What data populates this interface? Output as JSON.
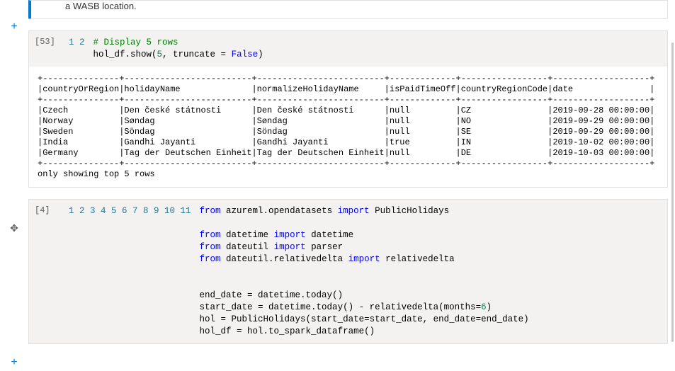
{
  "banner": {
    "text": "a WASB location."
  },
  "gutter": {
    "add_symbol": "+",
    "move_symbol": "✥"
  },
  "cell1": {
    "exec_count": "[53]",
    "line_numbers": [
      "1",
      "2"
    ],
    "code_tokens": [
      [
        {
          "t": "# Display 5 rows",
          "c": "cm"
        }
      ],
      [
        {
          "t": "hol_df.show(",
          "c": ""
        },
        {
          "t": "5",
          "c": "num"
        },
        {
          "t": ", truncate = ",
          "c": ""
        },
        {
          "t": "False",
          "c": "bt"
        },
        {
          "t": ")",
          "c": ""
        }
      ]
    ],
    "output": {
      "sep": "+---------------+-------------------------+-------------------------+-------------+-----------------+-------------------+",
      "header": "|countryOrRegion|holidayName              |normalizeHolidayName     |isPaidTimeOff|countryRegionCode|date               |",
      "rows": [
        "|Czech          |Den české státnosti      |Den české státnosti      |null         |CZ               |2019-09-28 00:00:00|",
        "|Norway         |Søndag                   |Søndag                   |null         |NO               |2019-09-29 00:00:00|",
        "|Sweden         |Söndag                   |Söndag                   |null         |SE               |2019-09-29 00:00:00|",
        "|India          |Gandhi Jayanti           |Gandhi Jayanti           |true         |IN               |2019-10-02 00:00:00|",
        "|Germany        |Tag der Deutschen Einheit|Tag der Deutschen Einheit|null         |DE               |2019-10-03 00:00:00|"
      ],
      "footer": "only showing top 5 rows"
    }
  },
  "cell2": {
    "exec_count": "[4]",
    "line_numbers": [
      "1",
      "2",
      "3",
      "4",
      "5",
      "6",
      "7",
      "8",
      "9",
      "10",
      "11"
    ],
    "code_tokens": [
      [
        {
          "t": "from",
          "c": "kw"
        },
        {
          "t": " azureml.opendatasets ",
          "c": ""
        },
        {
          "t": "import",
          "c": "kw"
        },
        {
          "t": " PublicHolidays",
          "c": ""
        }
      ],
      [],
      [
        {
          "t": "from",
          "c": "kw"
        },
        {
          "t": " datetime ",
          "c": ""
        },
        {
          "t": "import",
          "c": "kw"
        },
        {
          "t": " datetime",
          "c": ""
        }
      ],
      [
        {
          "t": "from",
          "c": "kw"
        },
        {
          "t": " dateutil ",
          "c": ""
        },
        {
          "t": "import",
          "c": "kw"
        },
        {
          "t": " parser",
          "c": ""
        }
      ],
      [
        {
          "t": "from",
          "c": "kw"
        },
        {
          "t": " dateutil.relativedelta ",
          "c": ""
        },
        {
          "t": "import",
          "c": "kw"
        },
        {
          "t": " relativedelta",
          "c": ""
        }
      ],
      [],
      [],
      [
        {
          "t": "end_date = datetime.today()",
          "c": ""
        }
      ],
      [
        {
          "t": "start_date = datetime.today() - relativedelta(months=",
          "c": ""
        },
        {
          "t": "6",
          "c": "num"
        },
        {
          "t": ")",
          "c": ""
        }
      ],
      [
        {
          "t": "hol = PublicHolidays(start_date=start_date, end_date=end_date)",
          "c": ""
        }
      ],
      [
        {
          "t": "hol_df = hol.to_spark_dataframe()",
          "c": ""
        }
      ]
    ]
  }
}
